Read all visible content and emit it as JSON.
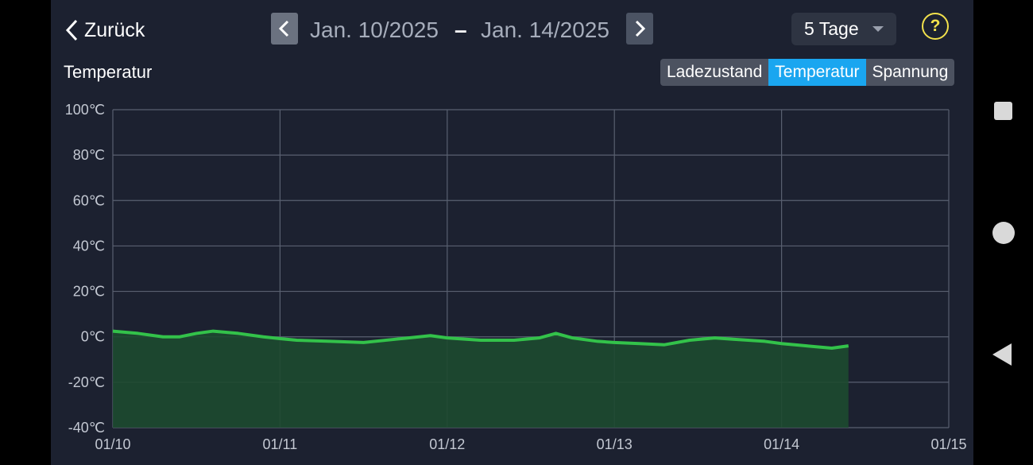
{
  "header": {
    "back_label": "Zurück",
    "date_start": "Jan. 10/2025",
    "date_separator": "–",
    "date_end": "Jan. 14/2025",
    "range_value": "5 Tage",
    "help_symbol": "?"
  },
  "chart_title": "Temperatur",
  "tabs": [
    {
      "label": "Ladezustand",
      "active": false
    },
    {
      "label": "Temperatur",
      "active": true
    },
    {
      "label": "Spannung",
      "active": false
    }
  ],
  "colors": {
    "background": "#1c2130",
    "accent": "#1aa6f0",
    "line": "#33c24a",
    "fill": "#1d4a30",
    "grid": "#596070",
    "help": "#f2e14c"
  },
  "chart_data": {
    "type": "area",
    "title": "Temperatur",
    "unit": "℃",
    "y_ticks": [
      "100℃",
      "80℃",
      "60℃",
      "40℃",
      "20℃",
      "0℃",
      "-20℃",
      "-40℃"
    ],
    "ylim": [
      -40,
      100
    ],
    "x_ticks": [
      "01/10",
      "01/11",
      "01/12",
      "01/13",
      "01/14",
      "01/15"
    ],
    "xlim_days": [
      0,
      5
    ],
    "grid": true,
    "series": [
      {
        "x": [
          0,
          0.15,
          0.3,
          0.4,
          0.5,
          0.6,
          0.75,
          0.9,
          1.0,
          1.1,
          1.3,
          1.5,
          1.7,
          1.9,
          2.0,
          2.2,
          2.4,
          2.55,
          2.65,
          2.75,
          2.9,
          3.0,
          3.15,
          3.3,
          3.45,
          3.6,
          3.7,
          3.8,
          3.9,
          4.0,
          4.15,
          4.3,
          4.4
        ],
        "values": [
          2.5,
          1.5,
          0,
          0,
          1.5,
          2.5,
          1.5,
          0,
          -0.8,
          -1.5,
          -2,
          -2.5,
          -1,
          0.5,
          -0.5,
          -1.5,
          -1.5,
          -0.5,
          1.5,
          -0.5,
          -2,
          -2.5,
          -3,
          -3.5,
          -1.5,
          -0.5,
          -1,
          -1.5,
          -2,
          -3,
          -4,
          -5,
          -4
        ]
      }
    ]
  },
  "system_nav": {
    "recents_icon": "square-icon",
    "home_icon": "circle-icon",
    "back_icon": "triangle-back-icon"
  }
}
